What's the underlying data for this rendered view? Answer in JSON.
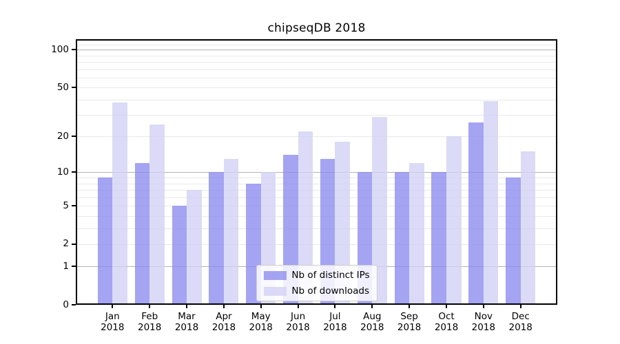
{
  "chart_data": {
    "type": "bar",
    "title": "chipseqDB 2018",
    "categories": [
      "Jan",
      "Feb",
      "Mar",
      "Apr",
      "May",
      "Jun",
      "Jul",
      "Aug",
      "Sep",
      "Oct",
      "Nov",
      "Dec"
    ],
    "year_label": "2018",
    "series": [
      {
        "name": "Nb of distinct IPs",
        "color": "rgba(138,138,238,0.78)",
        "values": [
          9,
          12,
          5,
          10,
          8,
          14,
          13,
          10,
          10,
          10,
          26,
          9
        ]
      },
      {
        "name": "Nb of downloads",
        "color": "rgba(209,209,245,0.78)",
        "values": [
          38,
          25,
          7,
          13,
          10,
          22,
          18,
          29,
          12,
          20,
          39,
          15
        ]
      }
    ],
    "yaxis": {
      "scale": "log1p",
      "ymin": 0,
      "ymax": 121,
      "ticks": [
        {
          "label": "100",
          "value": 100
        },
        {
          "label": "50",
          "value": 50
        },
        {
          "label": "20",
          "value": 20
        },
        {
          "label": "10",
          "value": 10
        },
        {
          "label": "5",
          "value": 5
        },
        {
          "label": "2",
          "value": 2
        },
        {
          "label": "1",
          "value": 1
        },
        {
          "label": "0",
          "value": 0
        }
      ],
      "major_gridlines": [
        1,
        10,
        100
      ],
      "minor_gridlines": [
        2,
        3,
        4,
        5,
        6,
        7,
        8,
        9,
        20,
        30,
        40,
        50,
        60,
        70,
        80,
        90,
        110
      ]
    },
    "legend": {
      "position": "lower center"
    },
    "colors": {
      "grid_major": "#b3b3b3",
      "grid_minor": "#e9e9e9",
      "axis": "#000000"
    }
  }
}
